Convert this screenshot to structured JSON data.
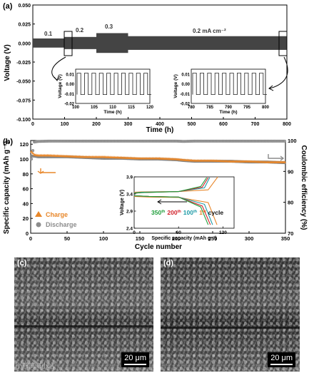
{
  "panel_a": {
    "label": "(a)",
    "ylabel": "Voltage (V)",
    "xlabel": "Time (h)",
    "yticks": [
      "0.050",
      "0.025",
      "0.000",
      "-0.025",
      "-0.050",
      "-0.075",
      "-0.100"
    ],
    "xticks": [
      "0",
      "100",
      "200",
      "300",
      "400",
      "500",
      "600",
      "700",
      "800"
    ],
    "annotations": [
      "0.1",
      "0.2",
      "0.3",
      "0.2 mA cm⁻²"
    ],
    "inset_left": {
      "ylabel": "Voltage (V)",
      "xlabel": "Time (h)",
      "yticks": [
        "0.01",
        "0.00",
        "-0.01",
        "-0.02"
      ],
      "xticks": [
        "100",
        "105",
        "110",
        "115",
        "120"
      ]
    },
    "inset_right": {
      "ylabel": "Voltage (V)",
      "xlabel": "Time (h)",
      "yticks": [
        "0.01",
        "0.00",
        "-0.01",
        "-0.02"
      ],
      "xticks": [
        "780",
        "785",
        "790",
        "795",
        "800"
      ]
    }
  },
  "panel_b": {
    "label": "(b)",
    "ylabel_left": "Specific capacity (mAh g⁻¹)",
    "ylabel_right": "Coulombic efficiency (%)",
    "xlabel": "Cycle number",
    "yticks_left": [
      "0",
      "20",
      "40",
      "60",
      "80",
      "100",
      "120"
    ],
    "yticks_right": [
      "70",
      "80",
      "90",
      "100"
    ],
    "xticks": [
      "0",
      "50",
      "100",
      "150",
      "200",
      "250",
      "300",
      "350"
    ],
    "legend": [
      {
        "label": "Charge",
        "color": "#e8872a"
      },
      {
        "label": "Discharge",
        "color": "#8c8c8c"
      }
    ],
    "inset": {
      "ylabel": "Voltage (V)",
      "xlabel": "Specific capacity (mAh g⁻¹)",
      "yticks": [
        "2.4",
        "2.9",
        "3.4",
        "3.9"
      ],
      "xticks": [
        "0",
        "60",
        "120"
      ],
      "cycle_labels": [
        {
          "text": "350th",
          "color": "#1f9e3b"
        },
        {
          "text": "200th",
          "color": "#d0202a"
        },
        {
          "text": "100th",
          "color": "#1d9aa6"
        },
        {
          "text": "1st",
          "color": "#e8872a"
        },
        {
          "text": "cycle",
          "color": "#111111"
        }
      ]
    }
  },
  "panel_c": {
    "label": "(c)",
    "scale": "20 μm"
  },
  "panel_d": {
    "label": "(d)",
    "scale": "20 μm"
  },
  "watermark": "小熊简海小站",
  "chart_data": [
    {
      "type": "line",
      "title": "",
      "xlabel": "Time (h)",
      "ylabel": "Voltage (V)",
      "xlim": [
        0,
        800
      ],
      "ylim": [
        -0.1,
        0.05
      ],
      "grid": false,
      "series": [
        {
          "current_density_mA_cm2": 0.1,
          "time_range_h": [
            0,
            100
          ],
          "voltage_range_V": [
            -0.006,
            0.006
          ]
        },
        {
          "current_density_mA_cm2": 0.2,
          "time_range_h": [
            100,
            200
          ],
          "voltage_range_V": [
            -0.008,
            0.008
          ]
        },
        {
          "current_density_mA_cm2": 0.3,
          "time_range_h": [
            200,
            300
          ],
          "voltage_range_V": [
            -0.013,
            0.013
          ]
        },
        {
          "current_density_mA_cm2": 0.2,
          "time_range_h": [
            300,
            800
          ],
          "voltage_range_V": [
            -0.009,
            0.009
          ]
        }
      ]
    },
    {
      "type": "scatter",
      "xlabel": "Cycle number",
      "ylabel": "Specific capacity (mAh g⁻¹)",
      "ylabel_right": "Coulombic efficiency (%)",
      "xlim": [
        0,
        350
      ],
      "ylim": [
        0,
        125
      ],
      "ylim_right": [
        70,
        100
      ],
      "legend_position": "bottom-left",
      "x": [
        1,
        5,
        10,
        25,
        50,
        75,
        100,
        125,
        150,
        175,
        200,
        210,
        225,
        250,
        275,
        300,
        325,
        350
      ],
      "series": [
        {
          "name": "Charge",
          "values": [
            110,
            106,
            105,
            105,
            104,
            103,
            103,
            102,
            101,
            101,
            100,
            99,
            98,
            98,
            97,
            97,
            96,
            96
          ]
        },
        {
          "name": "Discharge",
          "values": [
            104,
            104,
            103,
            103,
            103,
            102,
            101,
            101,
            100,
            100,
            99,
            98,
            97,
            97,
            97,
            96,
            96,
            95
          ]
        },
        {
          "name": "Coulombic efficiency",
          "axis": "right",
          "values": [
            94,
            99.5,
            99.7,
            99.8,
            99.8,
            99.8,
            99.8,
            99.8,
            99.8,
            99.8,
            99.8,
            99.7,
            99.8,
            99.8,
            99.8,
            99.8,
            99.8,
            99.8
          ]
        }
      ]
    },
    {
      "type": "line",
      "xlabel": "Specific capacity (mAh g⁻¹)",
      "ylabel": "Voltage (V)",
      "xlim": [
        0,
        135
      ],
      "ylim": [
        2.4,
        3.9
      ],
      "series": [
        {
          "name": "1st",
          "charge": [
            [
              0,
              3.45
            ],
            [
              10,
              3.46
            ],
            [
              60,
              3.47
            ],
            [
              100,
              3.52
            ],
            [
              113,
              3.9
            ]
          ],
          "discharge": [
            [
              0,
              3.33
            ],
            [
              20,
              3.31
            ],
            [
              60,
              3.3
            ],
            [
              100,
              3.15
            ],
            [
              112,
              2.5
            ]
          ]
        },
        {
          "name": "100th",
          "charge": [
            [
              0,
              3.43
            ],
            [
              10,
              3.45
            ],
            [
              60,
              3.47
            ],
            [
              95,
              3.58
            ],
            [
              102,
              3.88
            ]
          ],
          "discharge": [
            [
              0,
              3.35
            ],
            [
              20,
              3.33
            ],
            [
              60,
              3.31
            ],
            [
              95,
              3.1
            ],
            [
              106,
              2.5
            ]
          ]
        },
        {
          "name": "200th",
          "charge": [
            [
              0,
              3.42
            ],
            [
              10,
              3.44
            ],
            [
              60,
              3.47
            ],
            [
              92,
              3.6
            ],
            [
              100,
              3.88
            ]
          ],
          "discharge": [
            [
              0,
              3.35
            ],
            [
              20,
              3.33
            ],
            [
              60,
              3.31
            ],
            [
              92,
              3.05
            ],
            [
              103,
              2.5
            ]
          ]
        },
        {
          "name": "350th",
          "charge": [
            [
              0,
              3.42
            ],
            [
              10,
              3.44
            ],
            [
              60,
              3.47
            ],
            [
              90,
              3.62
            ],
            [
              98,
              3.88
            ]
          ],
          "discharge": [
            [
              0,
              3.35
            ],
            [
              20,
              3.33
            ],
            [
              60,
              3.31
            ],
            [
              90,
              3.02
            ],
            [
              100,
              2.5
            ]
          ]
        }
      ]
    }
  ]
}
